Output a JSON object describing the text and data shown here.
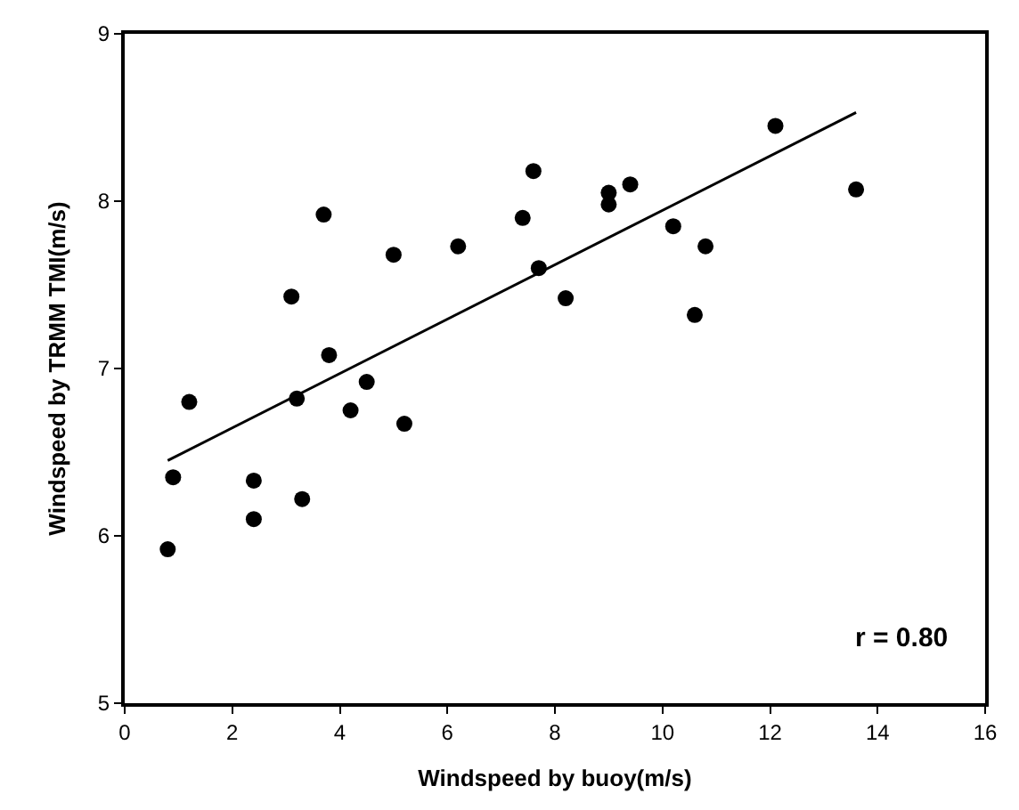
{
  "chart_data": {
    "type": "scatter",
    "xlabel": "Windspeed by buoy(m/s)",
    "ylabel": "Windspeed by TRMM TMI(m/s)",
    "series": [
      {
        "color": "#000000",
        "marker": "circle",
        "x": [
          0.8,
          0.9,
          1.2,
          2.4,
          2.4,
          3.1,
          3.2,
          3.3,
          3.7,
          3.8,
          4.2,
          4.5,
          5.0,
          5.2,
          6.2,
          7.4,
          7.6,
          7.7,
          8.2,
          9.0,
          9.0,
          9.4,
          10.2,
          10.6,
          10.8,
          12.1,
          13.6
        ],
        "values": [
          5.92,
          6.35,
          6.8,
          6.33,
          6.1,
          7.43,
          6.82,
          6.22,
          7.92,
          7.08,
          6.75,
          6.92,
          7.68,
          6.67,
          7.73,
          7.9,
          8.18,
          7.6,
          7.42,
          8.05,
          7.98,
          8.1,
          7.85,
          7.32,
          7.73,
          8.45,
          8.07
        ]
      },
      {
        "type": "line",
        "color": "#000000",
        "marker": "none",
        "x": [
          0.8,
          13.6
        ],
        "values": [
          6.45,
          8.53
        ]
      }
    ],
    "xlim": [
      0,
      16
    ],
    "xticks": [
      0,
      2,
      4,
      6,
      8,
      10,
      12,
      14,
      16
    ],
    "ylim": [
      5,
      9
    ],
    "yticks": [
      5,
      6,
      7,
      8,
      9
    ],
    "annotations": [
      "r = 0.80"
    ]
  }
}
